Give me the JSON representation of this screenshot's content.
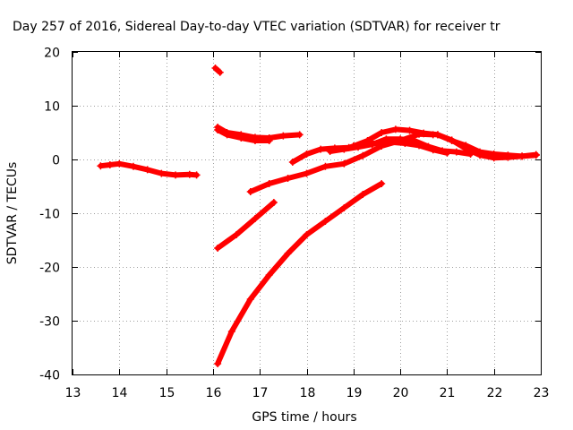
{
  "chart_data": {
    "type": "scatter",
    "title": "Day 257 of 2016, Sidereal Day-to-day VTEC variation (SDTVAR) for receiver tr",
    "xlabel": "GPS time / hours",
    "ylabel": "SDTVAR / TECUs",
    "xlim": [
      13,
      23
    ],
    "ylim": [
      -40,
      20
    ],
    "x_ticks": [
      13,
      14,
      15,
      16,
      17,
      18,
      19,
      20,
      21,
      22,
      23
    ],
    "y_ticks": [
      -40,
      -30,
      -20,
      -10,
      0,
      10,
      20
    ],
    "grid": true,
    "color": "#ff0000",
    "series": [
      {
        "x": [
          13.6,
          13.8,
          14.0,
          14.3,
          14.6,
          14.9,
          15.2,
          15.5,
          15.65
        ],
        "y": [
          -1.2,
          -1.0,
          -0.8,
          -1.3,
          -1.9,
          -2.6,
          -2.9,
          -2.8,
          -2.9
        ]
      },
      {
        "x": [
          16.05,
          16.15
        ],
        "y": [
          17.0,
          16.2
        ]
      },
      {
        "x": [
          16.1,
          16.3,
          16.6,
          16.9,
          17.2,
          17.5,
          17.85
        ],
        "y": [
          6.0,
          5.0,
          4.6,
          4.1,
          4.0,
          4.4,
          4.6
        ]
      },
      {
        "x": [
          16.1,
          16.3,
          16.6,
          16.9,
          17.2
        ],
        "y": [
          5.5,
          4.6,
          4.0,
          3.5,
          3.5
        ]
      },
      {
        "x": [
          16.1,
          16.5,
          16.9,
          17.3
        ],
        "y": [
          -16.5,
          -14.0,
          -11.0,
          -8.0
        ]
      },
      {
        "x": [
          16.1,
          16.4,
          16.8,
          17.2,
          17.6,
          18.0,
          18.4,
          18.8,
          19.2,
          19.6
        ],
        "y": [
          -38.0,
          -32.0,
          -26.0,
          -21.5,
          -17.5,
          -14.0,
          -11.5,
          -9.0,
          -6.5,
          -4.5
        ]
      },
      {
        "x": [
          16.8,
          17.2,
          17.6,
          18.0,
          18.4,
          18.8,
          19.2,
          19.6,
          20.0,
          20.4,
          20.7
        ],
        "y": [
          -6.0,
          -4.5,
          -3.5,
          -2.6,
          -1.3,
          -0.8,
          0.7,
          2.5,
          3.5,
          4.7,
          4.6
        ]
      },
      {
        "x": [
          17.7,
          18.0,
          18.3,
          18.6,
          18.9,
          19.2,
          19.5,
          19.8,
          20.1,
          20.4,
          20.7,
          21.0
        ],
        "y": [
          -0.5,
          1.0,
          1.9,
          2.1,
          2.2,
          3.0,
          3.0,
          3.2,
          3.0,
          2.6,
          1.8,
          1.2
        ]
      },
      {
        "x": [
          18.5,
          18.8,
          19.1,
          19.4,
          19.7,
          20.0,
          20.3,
          20.6,
          20.9,
          21.2,
          21.5
        ],
        "y": [
          1.5,
          1.9,
          2.3,
          2.8,
          3.8,
          3.8,
          3.5,
          2.4,
          1.6,
          1.4,
          1.0
        ]
      },
      {
        "x": [
          19.0,
          19.3,
          19.6,
          19.9,
          20.2,
          20.5,
          20.8,
          21.1,
          21.4,
          21.7,
          22.0,
          22.3,
          22.6,
          22.9
        ],
        "y": [
          2.5,
          3.5,
          5.0,
          5.6,
          5.4,
          4.9,
          4.6,
          3.6,
          2.0,
          0.8,
          0.3,
          0.4,
          0.6,
          0.8
        ]
      },
      {
        "x": [
          20.5,
          20.8,
          21.1,
          21.4,
          21.7,
          22.0,
          22.3,
          22.6,
          22.9
        ],
        "y": [
          4.8,
          4.6,
          3.5,
          2.6,
          1.4,
          1.0,
          0.8,
          0.6,
          0.9
        ]
      }
    ]
  }
}
